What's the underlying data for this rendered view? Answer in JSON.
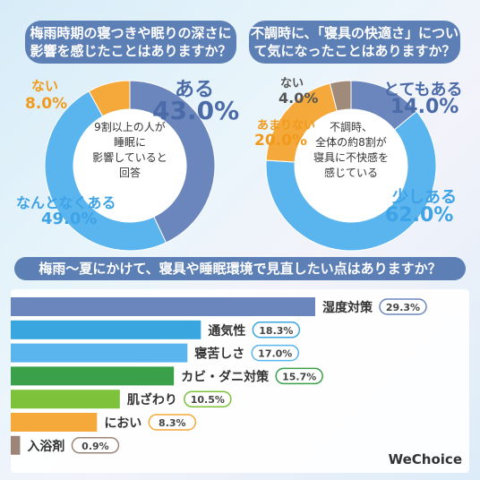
{
  "chart_data": [
    {
      "type": "pie",
      "title": "梅雨時期の寝つきや眠りの深さに影響を感じたことはありますか？",
      "center_text": [
        "9割以上の人が",
        "睡眠に",
        "影響していると",
        "回答"
      ],
      "slices": [
        {
          "label": "ある",
          "value": 43.0,
          "value_text": "43.0%",
          "color": "#6b86bd",
          "label_color": "#4a6aa8"
        },
        {
          "label": "なんとなくある",
          "value": 49.0,
          "value_text": "49.0%",
          "color": "#5ab4ee",
          "label_color": "#3ea3e6"
        },
        {
          "label": "ない",
          "value": 8.0,
          "value_text": "8.0%",
          "color": "#f4a93a",
          "label_color": "#f09a1c"
        }
      ]
    },
    {
      "type": "pie",
      "title": "不調時に、「寝具の快適さ」について気になったことはありますか？",
      "center_text": [
        "不調時、",
        "全体の約8割が",
        "寝具に不快感を",
        "感じている"
      ],
      "slices": [
        {
          "label": "とてもある",
          "value": 14.0,
          "value_text": "14.0%",
          "color": "#6b86bd",
          "label_color": "#4a6aa8"
        },
        {
          "label": "少しある",
          "value": 62.0,
          "value_text": "62.0%",
          "color": "#5ab4ee",
          "label_color": "#3ea3e6"
        },
        {
          "label": "あまりない",
          "value": 20.0,
          "value_text": "20.0%",
          "color": "#f4a93a",
          "label_color": "#f09a1c"
        },
        {
          "label": "ない",
          "value": 4.0,
          "value_text": "4.0%",
          "color": "#a08a7a",
          "label_color": "#555555"
        }
      ]
    },
    {
      "type": "bar",
      "title": "梅雨〜夏にかけて、寝具や睡眠環境で見直したい点はありますか？",
      "categories": [
        "湿度対策",
        "通気性",
        "寝苦しさ",
        "カビ・ダニ対策",
        "肌ざわり",
        "におい",
        "入浴剤"
      ],
      "values": [
        29.3,
        18.3,
        17.0,
        15.7,
        10.5,
        8.3,
        0.9
      ],
      "value_labels": [
        "29.3%",
        "18.3%",
        "17.0%",
        "15.7%",
        "10.5%",
        "8.3%",
        "0.9%"
      ],
      "colors": [
        "#6b86bd",
        "#3aa6e0",
        "#5ab4ee",
        "#3aa04a",
        "#7dc23a",
        "#f4a93a",
        "#9c8476"
      ]
    }
  ],
  "brand": "WeChoice"
}
